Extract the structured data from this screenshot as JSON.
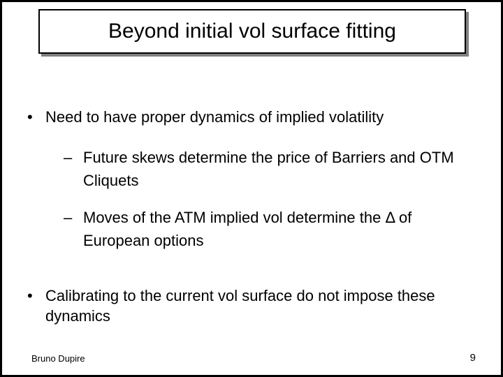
{
  "title": "Beyond initial vol surface fitting",
  "bullets": {
    "b1": "Need to have proper dynamics of implied volatility",
    "b1_1": "Future skews determine the price of Barriers and OTM Cliquets",
    "b1_2": "Moves of the ATM implied vol determine the Δ of European options",
    "b2": "Calibrating to the current vol surface do not impose these dynamics"
  },
  "footer": {
    "author": "Bruno Dupire",
    "page": "9"
  },
  "style": {
    "border_color": "#000000",
    "shadow_color": "#808080",
    "bg_color": "#ffffff",
    "title_fontsize": 30,
    "body_fontsize": 22,
    "footer_fontsize": 13
  }
}
